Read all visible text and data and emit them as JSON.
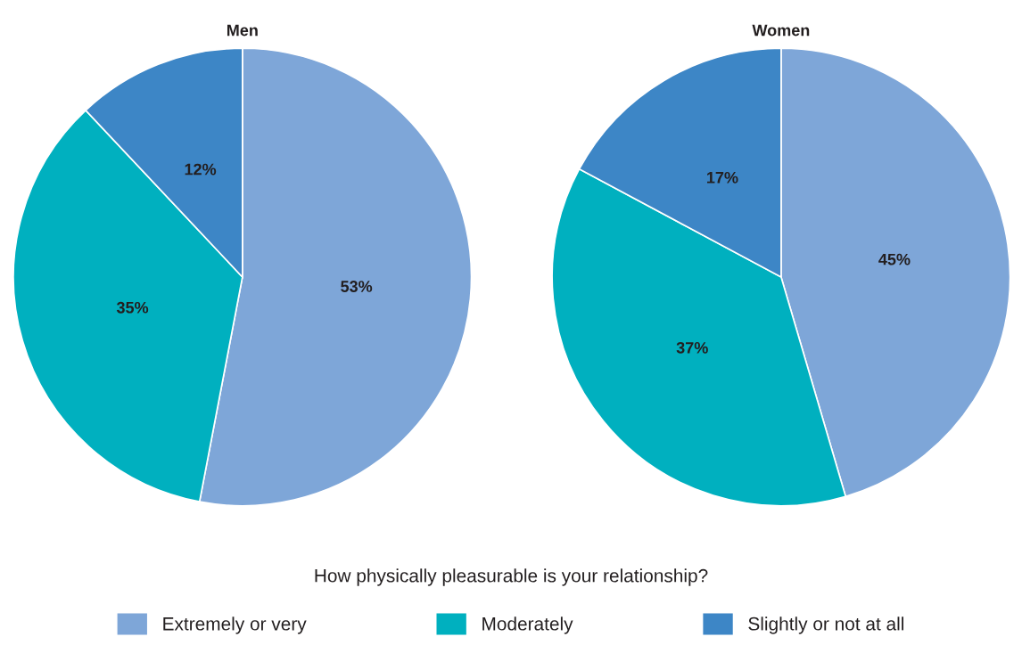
{
  "chart_data": {
    "type": "pie",
    "categories": [
      "Extremely or very",
      "Moderately",
      "Slightly or not at all"
    ],
    "colors": [
      "#7ea6d8",
      "#00b0bf",
      "#3d86c6"
    ],
    "legend": "bottom",
    "annotations": [
      "How physically pleasurable is your relationship?"
    ],
    "series": [
      {
        "name": "Men",
        "values": [
          53,
          35,
          12
        ],
        "value_labels": [
          "53%",
          "35%",
          "12%"
        ]
      },
      {
        "name": "Women",
        "values": [
          45,
          37,
          17
        ],
        "value_labels": [
          "45%",
          "37%",
          "17%"
        ]
      }
    ]
  }
}
